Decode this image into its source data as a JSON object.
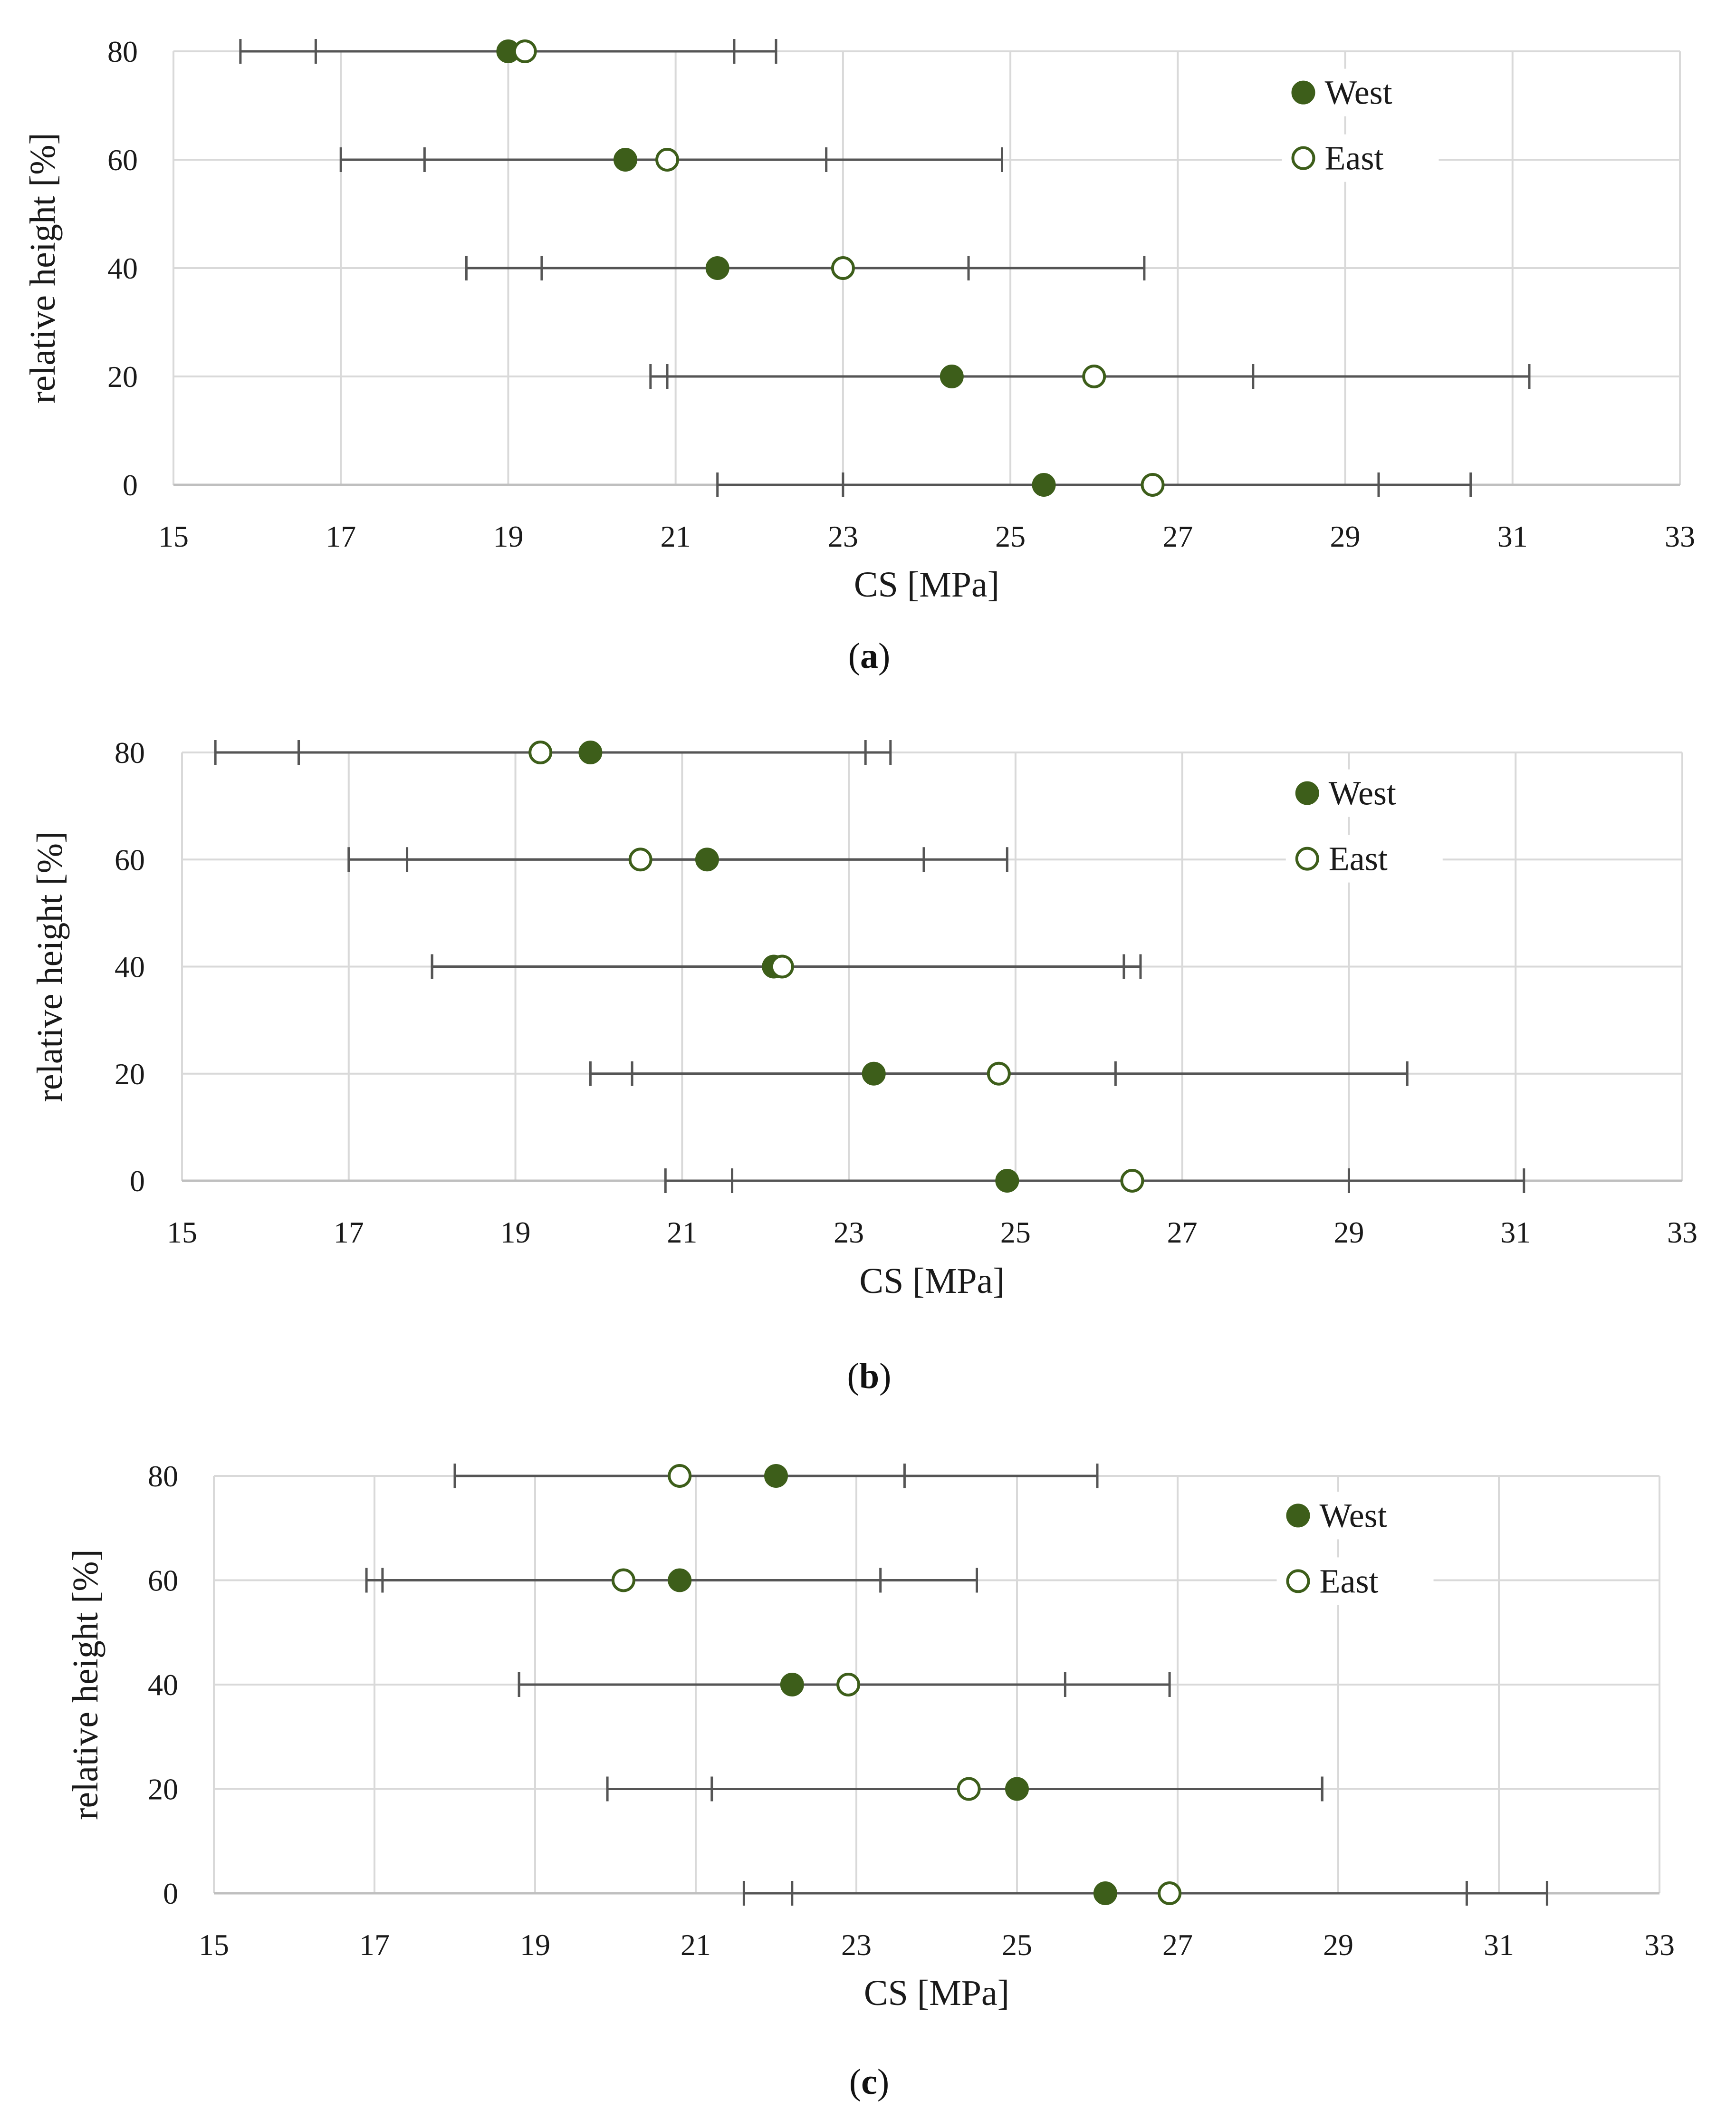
{
  "panel_labels": [
    "a",
    "b",
    "c"
  ],
  "chart_data": [
    {
      "type": "scatter",
      "panel": "a",
      "xlabel": "CS [MPa]",
      "ylabel": "relative height [%]",
      "xlim": [
        15,
        33
      ],
      "xticks": [
        15,
        17,
        19,
        21,
        23,
        25,
        27,
        29,
        31,
        33
      ],
      "ylim": [
        0,
        80
      ],
      "yticks": [
        0,
        20,
        40,
        60,
        80
      ],
      "legend": [
        "West",
        "East"
      ],
      "legend_position": "top-right",
      "series": [
        {
          "name": "West",
          "marker": "filled",
          "points": [
            {
              "y": 80,
              "x": 19.0,
              "lo": 15.8,
              "hi": 22.2
            },
            {
              "y": 60,
              "x": 20.4,
              "lo": 18.0,
              "hi": 22.8
            },
            {
              "y": 40,
              "x": 21.5,
              "lo": 18.5,
              "hi": 24.5
            },
            {
              "y": 20,
              "x": 24.3,
              "lo": 20.7,
              "hi": 27.9
            },
            {
              "y": 0,
              "x": 25.4,
              "lo": 21.5,
              "hi": 29.4
            }
          ]
        },
        {
          "name": "East",
          "marker": "open",
          "points": [
            {
              "y": 80,
              "x": 19.2,
              "lo": 16.7,
              "hi": 21.7
            },
            {
              "y": 60,
              "x": 20.9,
              "lo": 17.0,
              "hi": 24.9
            },
            {
              "y": 40,
              "x": 23.0,
              "lo": 19.4,
              "hi": 26.6
            },
            {
              "y": 20,
              "x": 26.0,
              "lo": 20.9,
              "hi": 31.2
            },
            {
              "y": 0,
              "x": 26.7,
              "lo": 23.0,
              "hi": 30.5
            }
          ]
        }
      ]
    },
    {
      "type": "scatter",
      "panel": "b",
      "xlabel": "CS [MPa]",
      "ylabel": "relative height [%]",
      "xlim": [
        15,
        33
      ],
      "xticks": [
        15,
        17,
        19,
        21,
        23,
        25,
        27,
        29,
        31,
        33
      ],
      "ylim": [
        0,
        80
      ],
      "yticks": [
        0,
        20,
        40,
        60,
        80
      ],
      "legend": [
        "West",
        "East"
      ],
      "legend_position": "top-right",
      "series": [
        {
          "name": "West",
          "marker": "filled",
          "points": [
            {
              "y": 80,
              "x": 19.9,
              "lo": 16.4,
              "hi": 23.5
            },
            {
              "y": 60,
              "x": 21.3,
              "lo": 17.7,
              "hi": 24.9
            },
            {
              "y": 40,
              "x": 22.1,
              "lo": 18.0,
              "hi": 26.3
            },
            {
              "y": 20,
              "x": 23.3,
              "lo": 20.4,
              "hi": 26.2
            },
            {
              "y": 0,
              "x": 24.9,
              "lo": 20.8,
              "hi": 29.0
            }
          ]
        },
        {
          "name": "East",
          "marker": "open",
          "points": [
            {
              "y": 80,
              "x": 19.3,
              "lo": 15.4,
              "hi": 23.2
            },
            {
              "y": 60,
              "x": 20.5,
              "lo": 17.0,
              "hi": 23.9
            },
            {
              "y": 40,
              "x": 22.2,
              "lo": 18.0,
              "hi": 26.5
            },
            {
              "y": 20,
              "x": 24.8,
              "lo": 19.9,
              "hi": 29.7
            },
            {
              "y": 0,
              "x": 26.4,
              "lo": 21.6,
              "hi": 31.1
            }
          ]
        }
      ]
    },
    {
      "type": "scatter",
      "panel": "c",
      "xlabel": "CS [MPa]",
      "ylabel": "relative height [%]",
      "xlim": [
        15,
        33
      ],
      "xticks": [
        15,
        17,
        19,
        21,
        23,
        25,
        27,
        29,
        31,
        33
      ],
      "ylim": [
        0,
        80
      ],
      "yticks": [
        0,
        20,
        40,
        60,
        80
      ],
      "legend": [
        "West",
        "East"
      ],
      "legend_position": "top-right",
      "series": [
        {
          "name": "West",
          "marker": "filled",
          "points": [
            {
              "y": 80,
              "x": 22.0,
              "lo": 18.0,
              "hi": 26.0
            },
            {
              "y": 60,
              "x": 20.8,
              "lo": 17.1,
              "hi": 24.5
            },
            {
              "y": 40,
              "x": 22.2,
              "lo": 18.8,
              "hi": 25.6
            },
            {
              "y": 20,
              "x": 25.0,
              "lo": 21.2,
              "hi": 28.8
            },
            {
              "y": 0,
              "x": 26.1,
              "lo": 21.6,
              "hi": 30.6
            }
          ]
        },
        {
          "name": "East",
          "marker": "open",
          "points": [
            {
              "y": 80,
              "x": 20.8,
              "lo": 18.0,
              "hi": 23.6
            },
            {
              "y": 60,
              "x": 20.1,
              "lo": 16.9,
              "hi": 23.3
            },
            {
              "y": 40,
              "x": 22.9,
              "lo": 18.8,
              "hi": 26.9
            },
            {
              "y": 20,
              "x": 24.4,
              "lo": 19.9,
              "hi": 28.8
            },
            {
              "y": 0,
              "x": 26.9,
              "lo": 22.2,
              "hi": 31.6
            }
          ]
        }
      ]
    }
  ]
}
